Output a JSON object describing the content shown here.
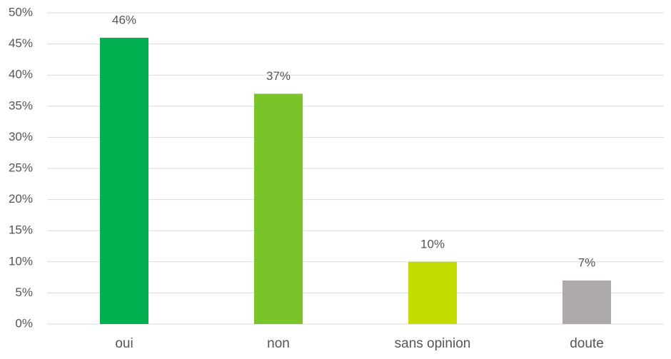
{
  "chart_data": {
    "type": "bar",
    "categories": [
      "oui",
      "non",
      "sans opinion",
      "doute"
    ],
    "values": [
      46,
      37,
      10,
      7
    ],
    "value_labels": [
      "46%",
      "37%",
      "10%",
      "7%"
    ],
    "colors": [
      "#00b050",
      "#7ac42a",
      "#c2dc00",
      "#aeaaaa"
    ],
    "ylim": [
      0,
      50
    ],
    "yticks": [
      {
        "value": 0,
        "label": "0%"
      },
      {
        "value": 5,
        "label": "5%"
      },
      {
        "value": 10,
        "label": "10%"
      },
      {
        "value": 15,
        "label": "15%"
      },
      {
        "value": 20,
        "label": "20%"
      },
      {
        "value": 25,
        "label": "25%"
      },
      {
        "value": 30,
        "label": "30%"
      },
      {
        "value": 35,
        "label": "35%"
      },
      {
        "value": 40,
        "label": "40%"
      },
      {
        "value": 45,
        "label": "45%"
      },
      {
        "value": 50,
        "label": "50%"
      }
    ],
    "grid": true
  }
}
